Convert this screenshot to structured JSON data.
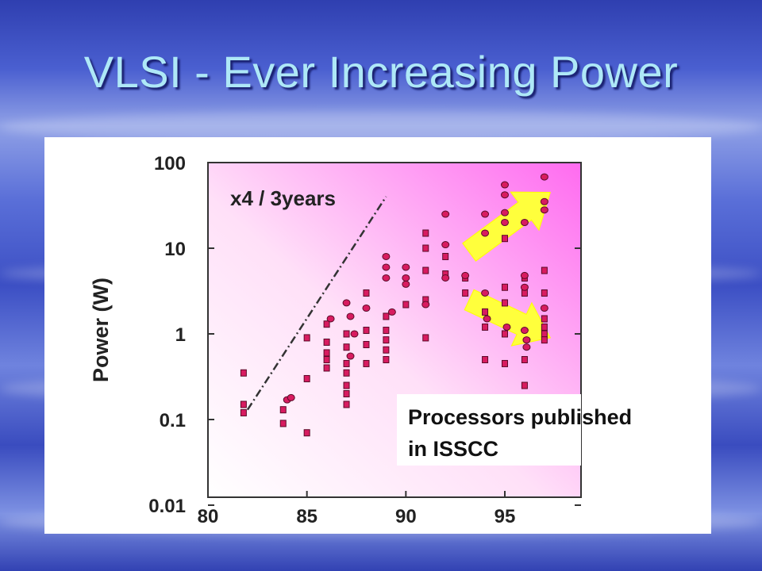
{
  "slide": {
    "title": "VLSI - Ever Increasing Power"
  },
  "colors": {
    "title": "#aee8f7",
    "marker": "#d81b60",
    "arrow": "#ffff3c",
    "plot_bg_edge": "#ff6bf0"
  },
  "chart_data": {
    "type": "scatter",
    "title": "",
    "xlabel": "",
    "ylabel": "Power (W)",
    "x_ticks": [
      "80",
      "85",
      "90",
      "95"
    ],
    "y_ticks": [
      "0.01",
      "0.1",
      "1",
      "10",
      "100"
    ],
    "xlim": [
      80,
      98
    ],
    "ylim": [
      0.01,
      150
    ],
    "y_scale": "log",
    "grid": false,
    "legend_text": [
      "Processors published",
      "in ISSCC"
    ],
    "legend_position": "bottom-right",
    "trend_annotation": {
      "label": "x4 / 3years",
      "from": [
        82,
        0.13
      ],
      "to": [
        89,
        40
      ]
    },
    "arrows": [
      {
        "direction": "up",
        "from": [
          93.2,
          9
        ],
        "to": [
          97.3,
          45
        ],
        "color": "#ffff3c"
      },
      {
        "direction": "down",
        "from": [
          93.2,
          2.5
        ],
        "to": [
          97.3,
          0.9
        ],
        "color": "#ffff3c"
      }
    ],
    "series": [
      {
        "marker": "square",
        "points": [
          [
            81.8,
            0.35
          ],
          [
            81.8,
            0.15
          ],
          [
            81.8,
            0.12
          ],
          [
            83.8,
            0.13
          ],
          [
            83.8,
            0.09
          ],
          [
            85,
            0.07
          ],
          [
            85,
            0.9
          ],
          [
            85,
            0.3
          ],
          [
            86,
            1.3
          ],
          [
            86,
            0.8
          ],
          [
            86,
            0.6
          ],
          [
            86,
            0.5
          ],
          [
            86,
            0.4
          ],
          [
            87,
            0.35
          ],
          [
            87,
            0.25
          ],
          [
            87,
            0.2
          ],
          [
            87,
            0.15
          ],
          [
            87,
            0.45
          ],
          [
            87,
            0.7
          ],
          [
            87,
            1.0
          ],
          [
            88,
            0.75
          ],
          [
            88,
            1.1
          ],
          [
            88,
            0.45
          ],
          [
            88,
            3.0
          ],
          [
            89,
            1.6
          ],
          [
            89,
            1.1
          ],
          [
            89,
            0.85
          ],
          [
            89,
            0.65
          ],
          [
            89,
            0.5
          ],
          [
            90,
            2.2
          ],
          [
            91,
            15
          ],
          [
            91,
            10
          ],
          [
            91,
            5.5
          ],
          [
            91,
            2.5
          ],
          [
            91,
            0.9
          ],
          [
            92,
            8
          ],
          [
            92,
            5
          ],
          [
            93,
            4.5
          ],
          [
            93,
            3.0
          ],
          [
            94,
            1.8
          ],
          [
            94,
            1.2
          ],
          [
            94,
            0.5
          ],
          [
            95,
            0.45
          ],
          [
            95,
            1.0
          ],
          [
            95,
            2.3
          ],
          [
            95,
            3.5
          ],
          [
            95,
            13
          ],
          [
            96,
            4.5
          ],
          [
            96,
            3.0
          ],
          [
            96,
            0.5
          ],
          [
            96,
            0.25
          ],
          [
            97,
            5.5
          ],
          [
            97,
            3.0
          ],
          [
            97,
            1.5
          ],
          [
            97,
            1.2
          ],
          [
            97,
            1.0
          ],
          [
            97,
            0.85
          ]
        ]
      },
      {
        "marker": "circle",
        "points": [
          [
            84,
            0.17
          ],
          [
            84.2,
            0.18
          ],
          [
            86.2,
            1.5
          ],
          [
            87,
            2.3
          ],
          [
            87.2,
            1.6
          ],
          [
            87.4,
            1.0
          ],
          [
            87.2,
            0.55
          ],
          [
            88,
            2.0
          ],
          [
            89,
            8
          ],
          [
            89,
            6
          ],
          [
            89,
            4.5
          ],
          [
            89.3,
            1.8
          ],
          [
            90,
            6
          ],
          [
            90,
            4.5
          ],
          [
            90,
            3.8
          ],
          [
            91,
            2.2
          ],
          [
            92,
            25
          ],
          [
            92,
            11
          ],
          [
            92,
            4.5
          ],
          [
            93,
            4.8
          ],
          [
            94,
            25
          ],
          [
            94,
            15
          ],
          [
            94,
            3.0
          ],
          [
            94.1,
            1.5
          ],
          [
            95,
            55
          ],
          [
            95,
            42
          ],
          [
            95,
            26
          ],
          [
            95,
            20
          ],
          [
            95.1,
            1.2
          ],
          [
            96,
            20
          ],
          [
            96,
            4.8
          ],
          [
            96,
            3.5
          ],
          [
            96,
            1.1
          ],
          [
            96.1,
            0.85
          ],
          [
            96.1,
            0.7
          ],
          [
            97,
            68
          ],
          [
            97,
            35
          ],
          [
            97,
            28
          ],
          [
            97,
            2.0
          ]
        ]
      }
    ]
  }
}
